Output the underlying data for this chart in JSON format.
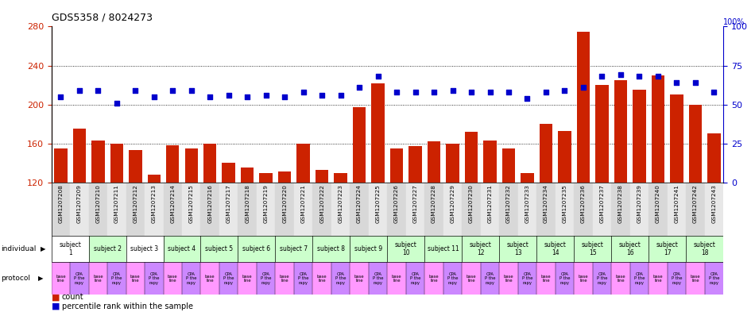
{
  "title": "GDS5358 / 8024273",
  "samples": [
    "GSM1207208",
    "GSM1207209",
    "GSM1207210",
    "GSM1207211",
    "GSM1207212",
    "GSM1207213",
    "GSM1207214",
    "GSM1207215",
    "GSM1207216",
    "GSM1207217",
    "GSM1207218",
    "GSM1207219",
    "GSM1207220",
    "GSM1207221",
    "GSM1207222",
    "GSM1207223",
    "GSM1207224",
    "GSM1207225",
    "GSM1207226",
    "GSM1207227",
    "GSM1207228",
    "GSM1207229",
    "GSM1207230",
    "GSM1207231",
    "GSM1207232",
    "GSM1207233",
    "GSM1207234",
    "GSM1207235",
    "GSM1207236",
    "GSM1207237",
    "GSM1207238",
    "GSM1207239",
    "GSM1207240",
    "GSM1207241",
    "GSM1207242",
    "GSM1207243"
  ],
  "count_values": [
    155,
    175,
    163,
    160,
    153,
    128,
    158,
    155,
    160,
    140,
    135,
    130,
    131,
    160,
    133,
    130,
    197,
    222,
    155,
    157,
    162,
    160,
    172,
    163,
    155,
    130,
    180,
    173,
    275,
    220,
    225,
    215,
    230,
    210,
    200,
    170
  ],
  "percentile_values": [
    55,
    59,
    59,
    51,
    59,
    55,
    59,
    59,
    55,
    56,
    55,
    56,
    55,
    58,
    56,
    56,
    61,
    68,
    58,
    58,
    58,
    59,
    58,
    58,
    58,
    54,
    58,
    59,
    61,
    68,
    69,
    68,
    68,
    64,
    64,
    58
  ],
  "subjects": [
    {
      "label": "subject\n1",
      "start": 0,
      "end": 2,
      "color": "#ffffff"
    },
    {
      "label": "subject 2",
      "start": 2,
      "end": 4,
      "color": "#ccffcc"
    },
    {
      "label": "subject 3",
      "start": 4,
      "end": 6,
      "color": "#ffffff"
    },
    {
      "label": "subject 4",
      "start": 6,
      "end": 8,
      "color": "#ccffcc"
    },
    {
      "label": "subject 5",
      "start": 8,
      "end": 10,
      "color": "#ccffcc"
    },
    {
      "label": "subject 6",
      "start": 10,
      "end": 12,
      "color": "#ccffcc"
    },
    {
      "label": "subject 7",
      "start": 12,
      "end": 14,
      "color": "#ccffcc"
    },
    {
      "label": "subject 8",
      "start": 14,
      "end": 16,
      "color": "#ccffcc"
    },
    {
      "label": "subject 9",
      "start": 16,
      "end": 18,
      "color": "#ccffcc"
    },
    {
      "label": "subject\n10",
      "start": 18,
      "end": 20,
      "color": "#ccffcc"
    },
    {
      "label": "subject 11",
      "start": 20,
      "end": 22,
      "color": "#ccffcc"
    },
    {
      "label": "subject\n12",
      "start": 22,
      "end": 24,
      "color": "#ccffcc"
    },
    {
      "label": "subject\n13",
      "start": 24,
      "end": 26,
      "color": "#ccffcc"
    },
    {
      "label": "subject\n14",
      "start": 26,
      "end": 28,
      "color": "#ccffcc"
    },
    {
      "label": "subject\n15",
      "start": 28,
      "end": 30,
      "color": "#ccffcc"
    },
    {
      "label": "subject\n16",
      "start": 30,
      "end": 32,
      "color": "#ccffcc"
    },
    {
      "label": "subject\n17",
      "start": 32,
      "end": 34,
      "color": "#ccffcc"
    },
    {
      "label": "subject\n18",
      "start": 34,
      "end": 36,
      "color": "#ccffcc"
    }
  ],
  "ylim_left": [
    120,
    280
  ],
  "yticks_left": [
    120,
    160,
    200,
    240,
    280
  ],
  "ylim_right": [
    0,
    100
  ],
  "yticks_right": [
    0,
    25,
    50,
    75,
    100
  ],
  "bar_color": "#cc2200",
  "dot_color": "#0000cc",
  "axis_color_left": "#cc2200",
  "axis_color_right": "#0000cc",
  "legend_count_label": "count",
  "legend_percentile_label": "percentile rank within the sample",
  "sample_col_colors": [
    "#d8d8d8",
    "#e8e8e8"
  ],
  "subject_colors": [
    "#ffffff",
    "#ccffcc",
    "#ffffff",
    "#ccffcc",
    "#ccffcc",
    "#ccffcc",
    "#ccffcc",
    "#ccffcc",
    "#ccffcc",
    "#ccffcc",
    "#ccffcc",
    "#ccffcc",
    "#ccffcc",
    "#ccffcc",
    "#ccffcc",
    "#ccffcc",
    "#ccffcc",
    "#ccffcc"
  ],
  "proto_baseline_color": "#ff99ff",
  "proto_cpa_color": "#cc88ff"
}
